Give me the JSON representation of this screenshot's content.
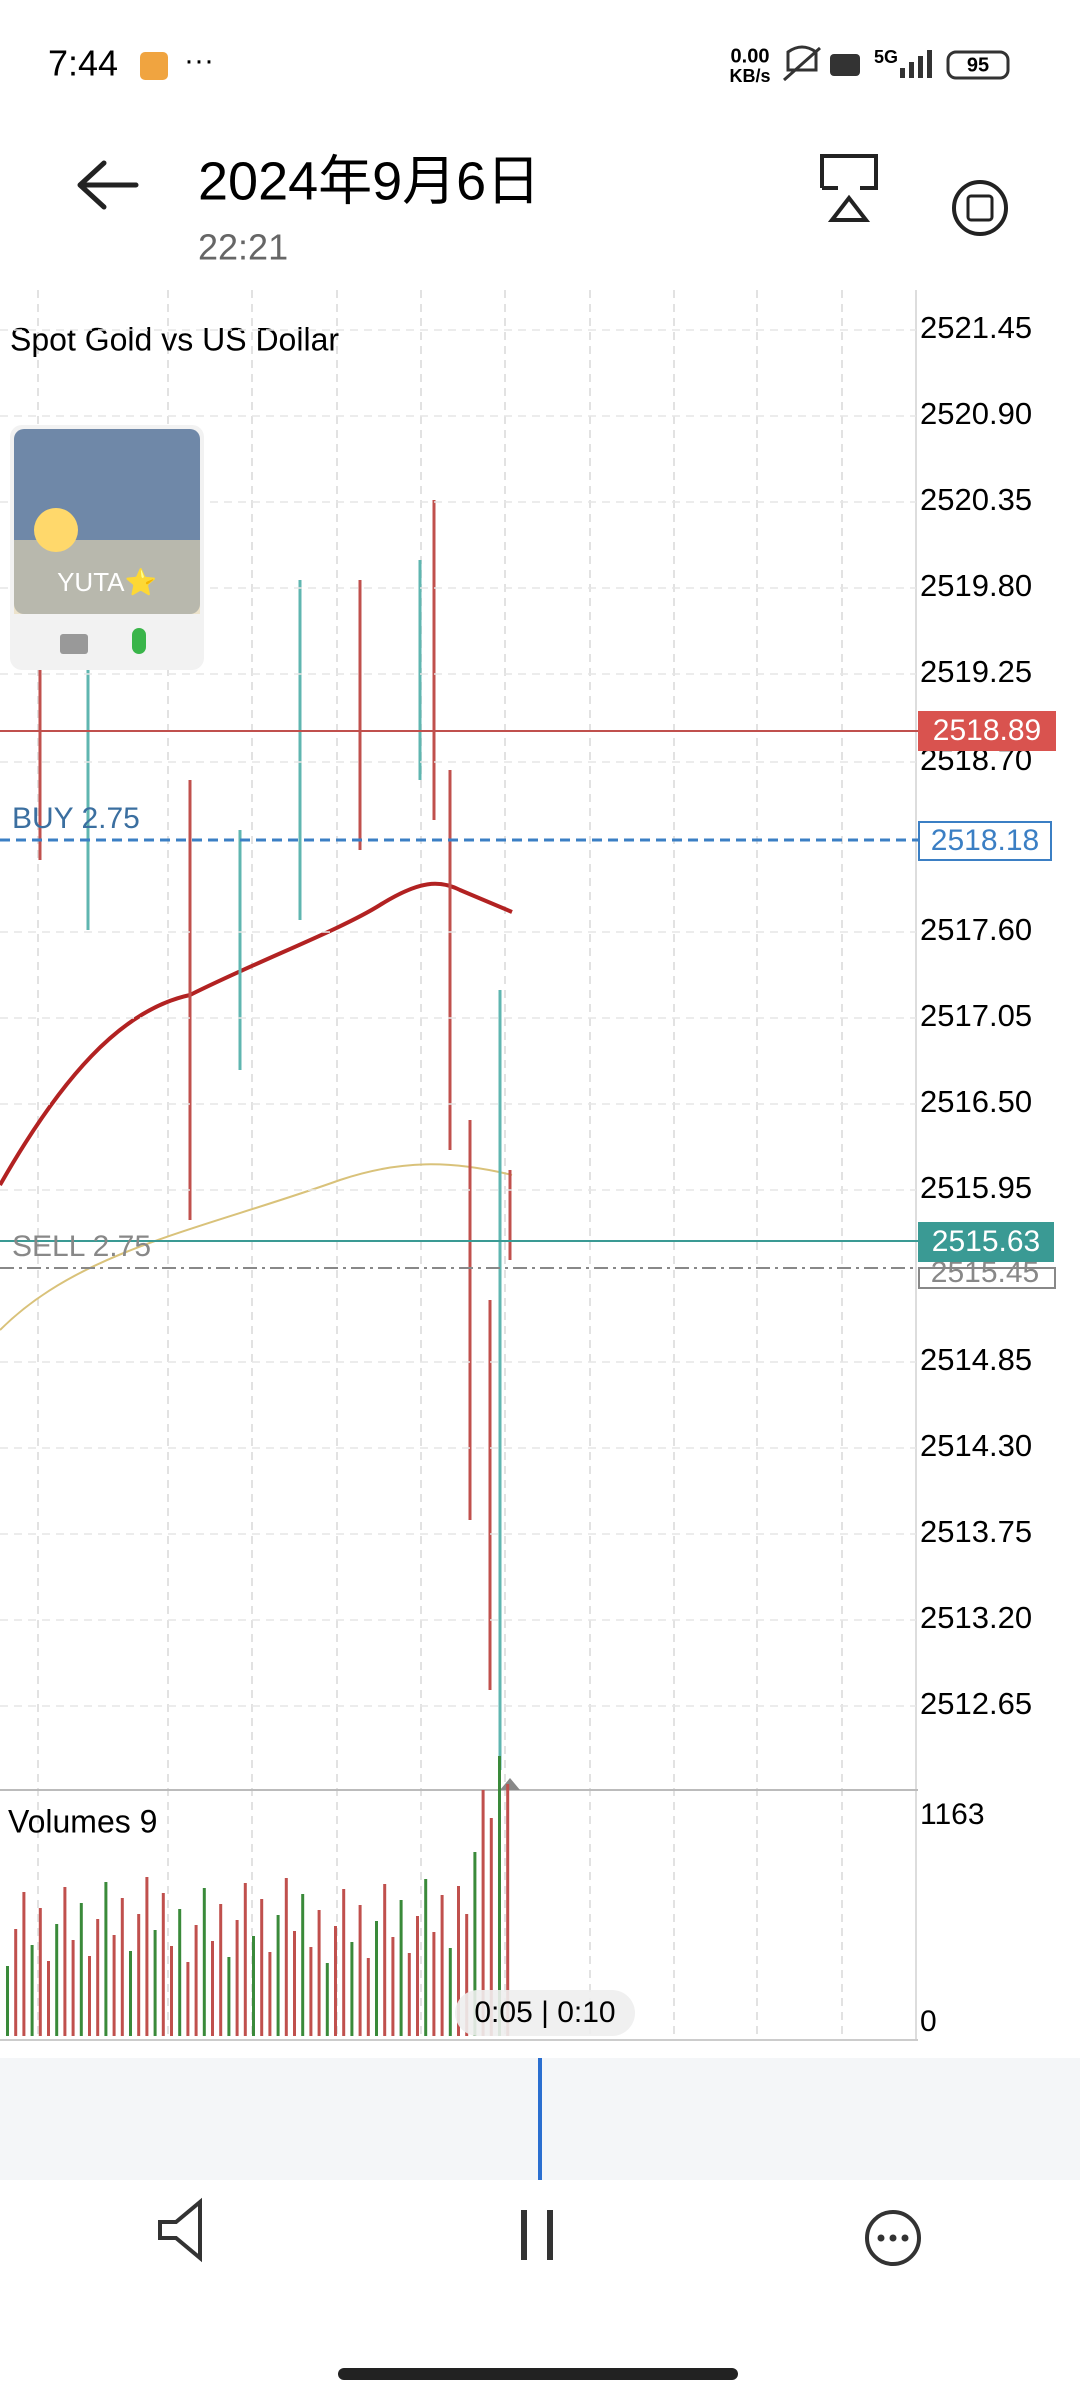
{
  "status_bar": {
    "time": "7:44",
    "net_speed": "0.00",
    "net_unit": "KB/s",
    "network": "5G",
    "battery": "95"
  },
  "header": {
    "title": "2024年9月6日",
    "subtitle": "22:21"
  },
  "chart": {
    "symbol_desc": "Spot Gold vs US Dollar",
    "overlay_name": "YUTA⭐",
    "price_labels": [
      "2521.45",
      "2520.90",
      "2520.35",
      "2519.80",
      "2519.25",
      "2518.70",
      "2517.60",
      "2517.05",
      "2516.50",
      "2515.95",
      "2514.85",
      "2514.30",
      "2513.75",
      "2513.20",
      "2512.65"
    ],
    "current_bid": "2518.89",
    "buy_label": "BUY 2.75",
    "buy_price": "2518.18",
    "sell_label": "SELL 2.75",
    "sell_price": "2515.63",
    "other_price": "2515.45",
    "volumes_label": "Volumes 9",
    "volume_max": "1163",
    "volume_min": "0"
  },
  "player": {
    "progress": "0:05 | 0:10"
  }
}
